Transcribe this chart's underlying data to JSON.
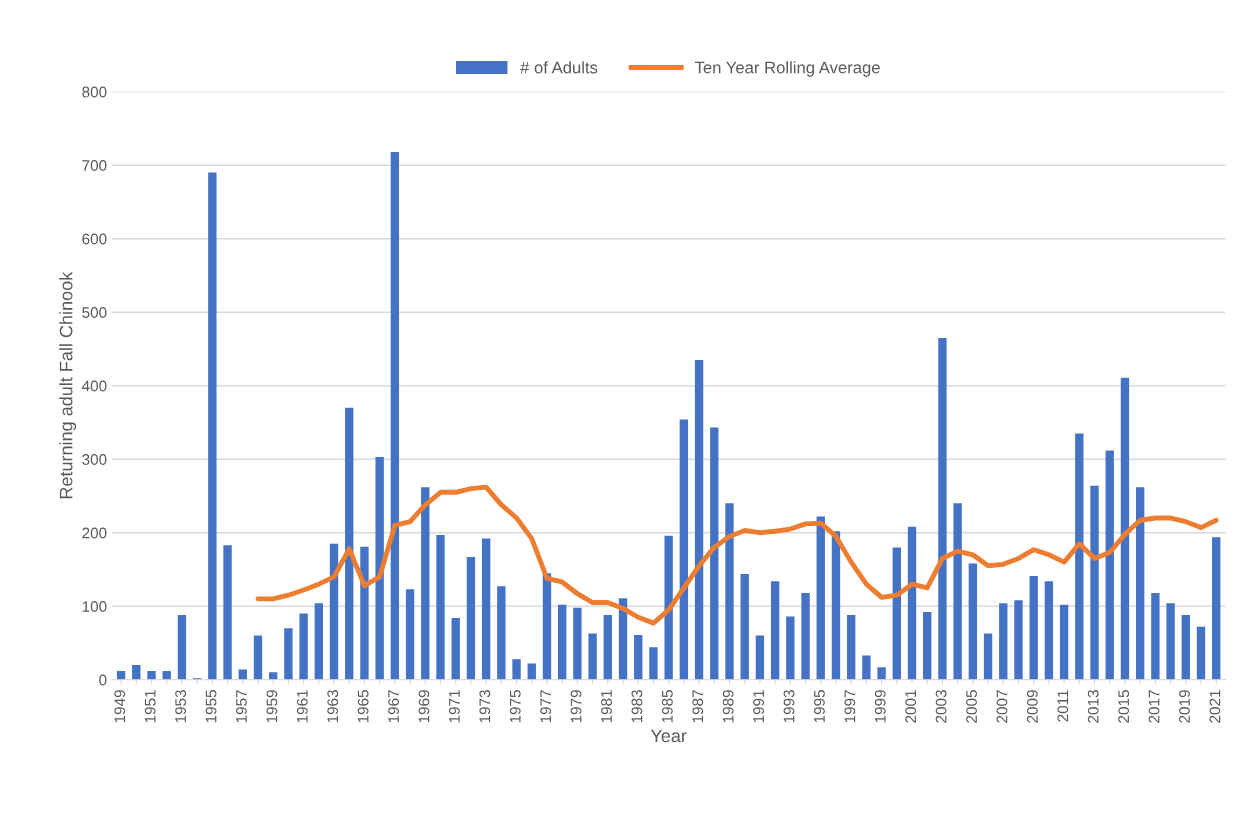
{
  "chart_data": {
    "type": "bar",
    "xlabel": "Year",
    "ylabel": "Returning adult Fall Chinook",
    "categories": [
      "1949",
      null,
      "1951",
      null,
      "1953",
      null,
      "1955",
      null,
      "1957",
      null,
      "1959",
      null,
      "1961",
      null,
      "1963",
      null,
      "1965",
      null,
      "1967",
      null,
      "1969",
      null,
      "1971",
      null,
      "1973",
      null,
      "1975",
      null,
      "1977",
      null,
      "1979",
      null,
      "1981",
      null,
      "1983",
      null,
      "1985",
      null,
      "1987",
      null,
      "1989",
      null,
      "1991",
      null,
      "1993",
      null,
      "1995",
      null,
      "1997",
      null,
      "1999",
      null,
      "2001",
      null,
      "2003",
      null,
      "2005",
      null,
      "2007",
      null,
      "2009",
      null,
      "2011",
      null,
      "2013",
      null,
      "2015",
      null,
      "2017",
      null,
      "2019",
      null,
      "2021"
    ],
    "series": [
      {
        "name": "# of Adults",
        "color": "#4472c4",
        "values": [
          12,
          20,
          12,
          12,
          88,
          2,
          690,
          183,
          14,
          60,
          10,
          70,
          90,
          104,
          185,
          370,
          181,
          303,
          718,
          123,
          262,
          197,
          84,
          167,
          192,
          127,
          28,
          22,
          145,
          102,
          98,
          63,
          88,
          111,
          61,
          44,
          196,
          354,
          435,
          343,
          240,
          144,
          60,
          134,
          86,
          118,
          222,
          202,
          88,
          33,
          17,
          180,
          208,
          92,
          465,
          240,
          158,
          63,
          104,
          108,
          141,
          134,
          102,
          335,
          264,
          312,
          411,
          262,
          118,
          104,
          88,
          72,
          194
        ]
      },
      {
        "name": "Ten Year Rolling Average",
        "type": "line",
        "color": "#ed7d31",
        "values": [
          null,
          null,
          null,
          null,
          null,
          null,
          null,
          null,
          null,
          110,
          110,
          115,
          122,
          130,
          140,
          178,
          128,
          140,
          210,
          215,
          238,
          255,
          255,
          260,
          262,
          238,
          220,
          192,
          138,
          133,
          117,
          105,
          105,
          97,
          85,
          77,
          95,
          125,
          155,
          180,
          195,
          203,
          200,
          202,
          205,
          212,
          213,
          195,
          160,
          130,
          112,
          115,
          130,
          125,
          165,
          175,
          170,
          155,
          157,
          165,
          177,
          170,
          160,
          185,
          165,
          173,
          198,
          217,
          220,
          220,
          215,
          207,
          217
        ]
      }
    ],
    "ylim": [
      0,
      800
    ],
    "yticks": [
      0,
      100,
      200,
      300,
      400,
      500,
      600,
      700,
      800
    ],
    "grid": "y",
    "legend": "top",
    "marker": "none",
    "line_style": "solid"
  }
}
